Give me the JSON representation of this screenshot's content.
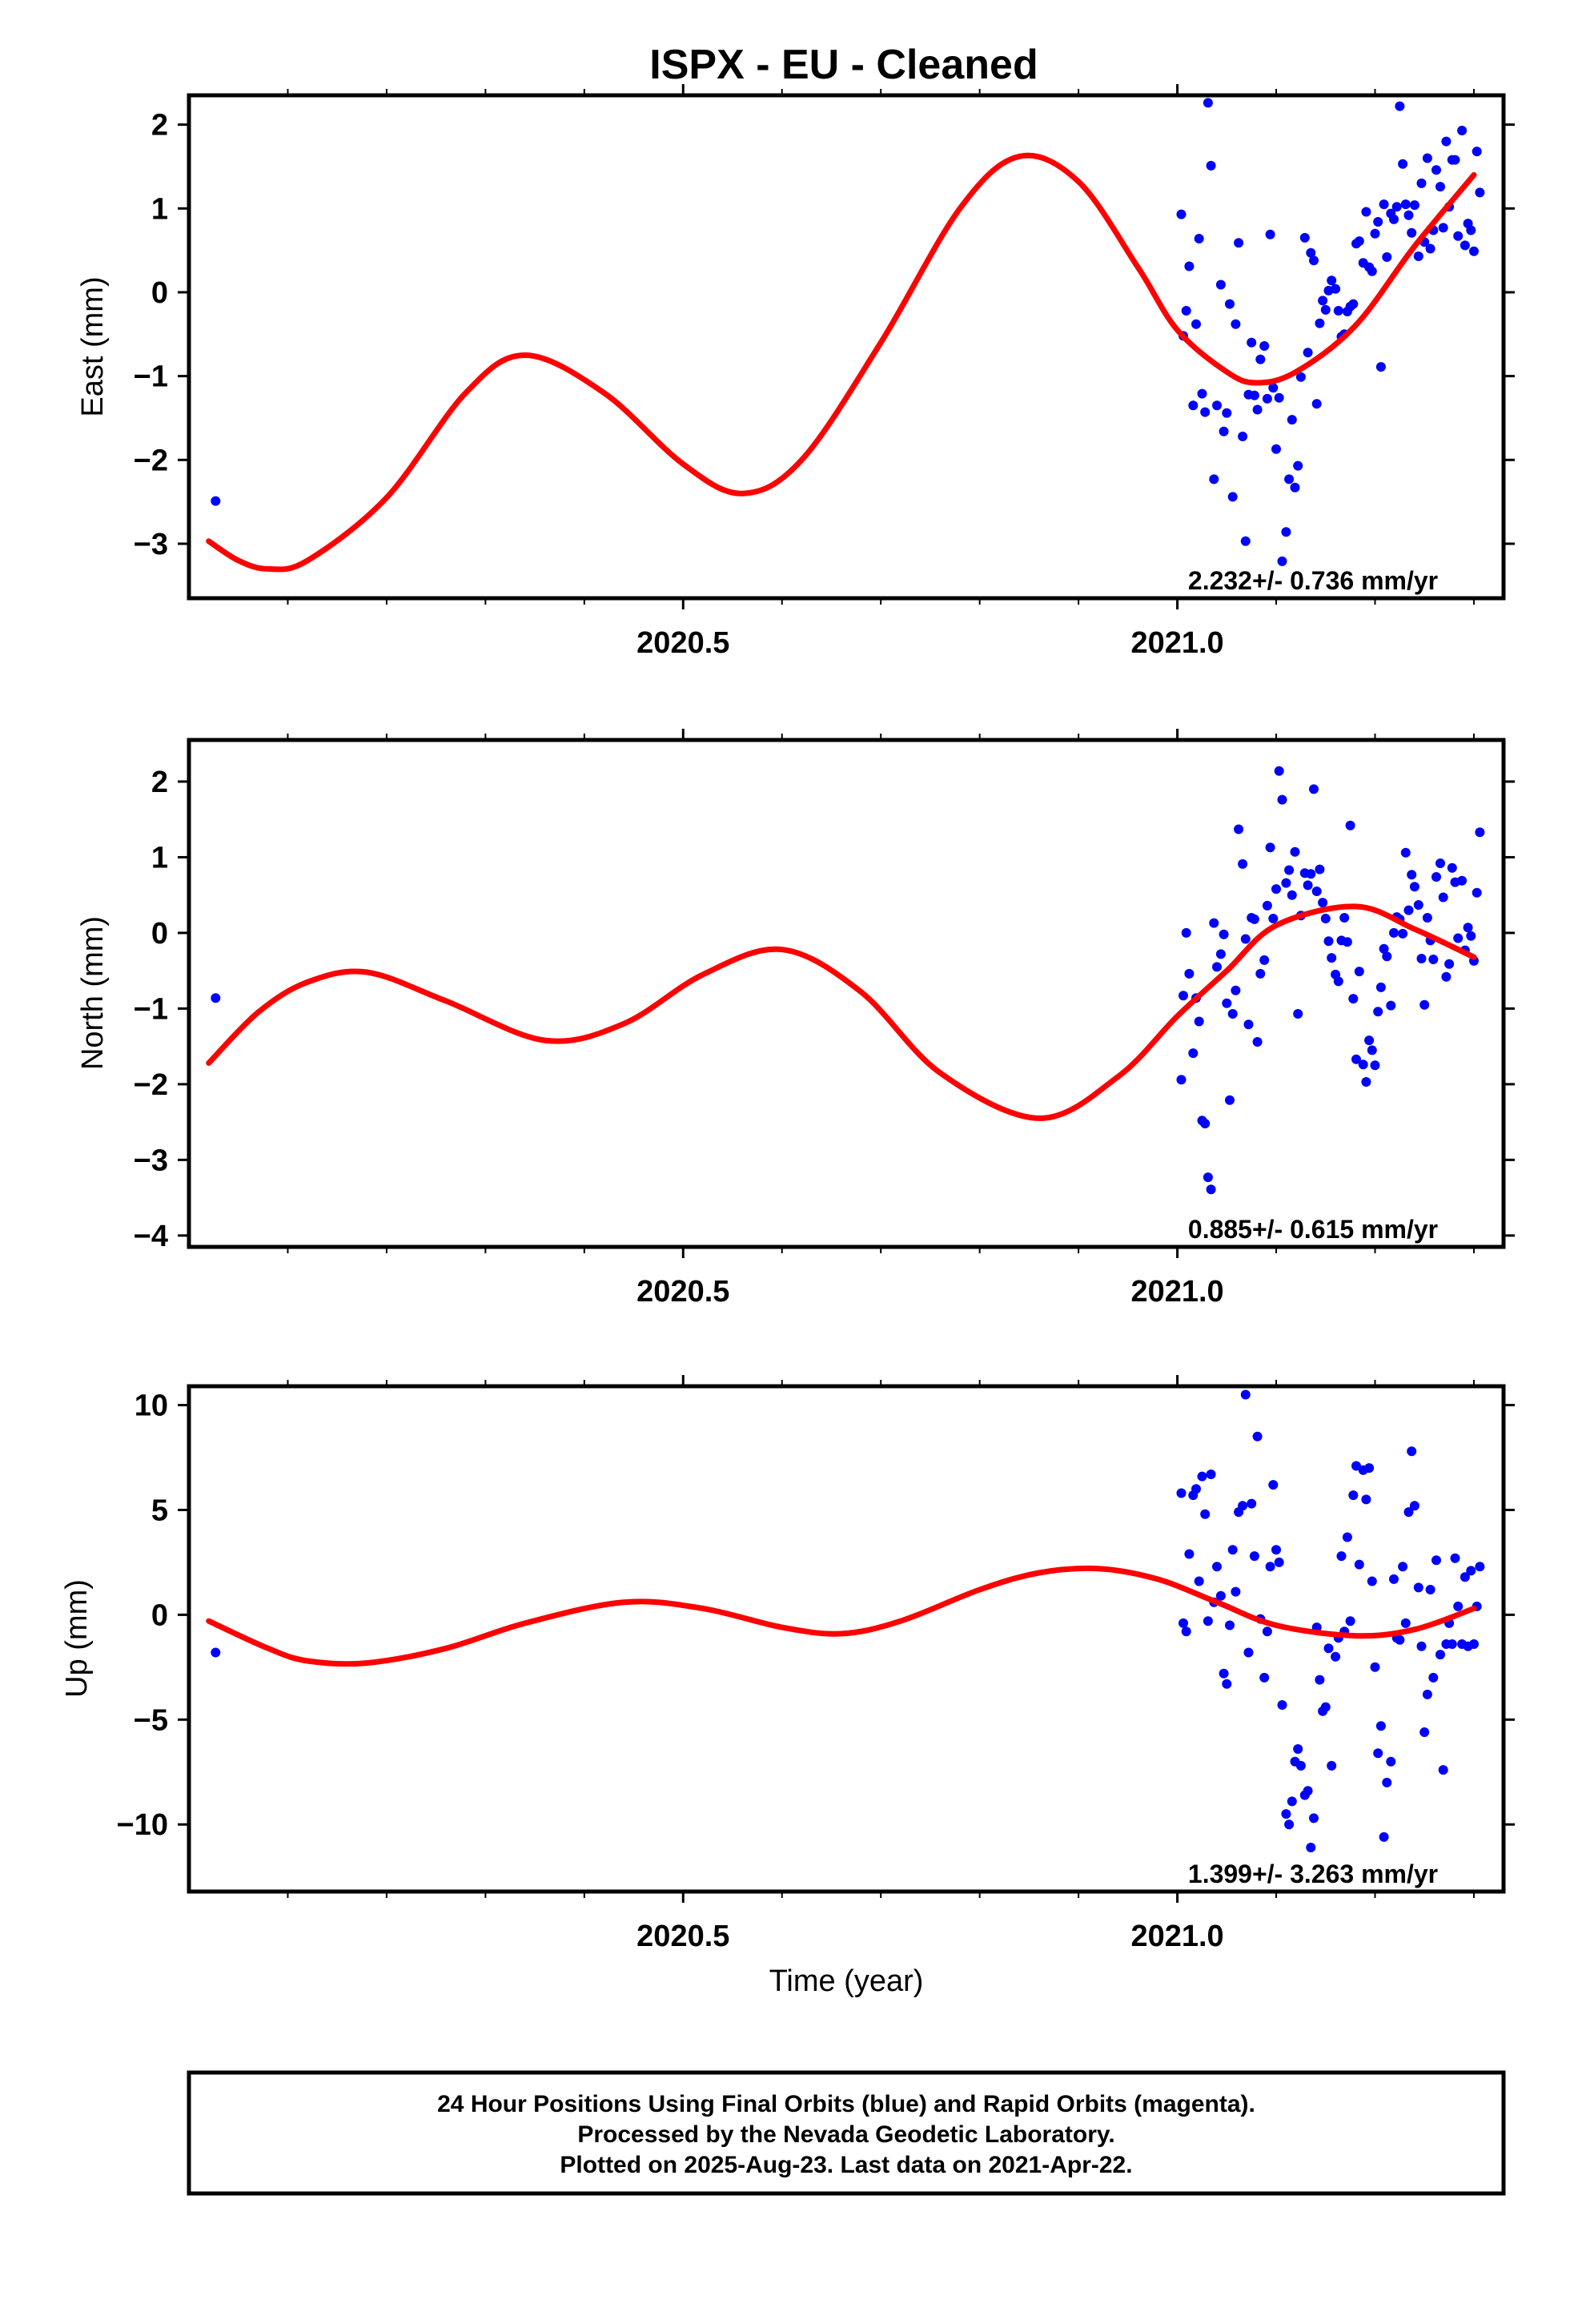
{
  "footer": {
    "lines": [
      "24 Hour Positions Using Final Orbits (blue) and Rapid Orbits (magenta).",
      "Processed by the Nevada Geodetic Laboratory.",
      "Plotted on 2025-Aug-23. Last data on 2021-Apr-22."
    ]
  },
  "colors": {
    "points": "#0000ff",
    "model": "#ff0000",
    "frame": "#000000"
  },
  "chart_data": [
    {
      "type": "scatter",
      "title": "ISPX  - EU - Cleaned",
      "ylabel": "East (mm)",
      "xlabel": "",
      "xlim": [
        2020.0,
        2021.33
      ],
      "ylim": [
        -3.65,
        2.35
      ],
      "x_ticks": [
        2020.5,
        2021.0
      ],
      "x_tick_labels": [
        "2020.5",
        "2021.0"
      ],
      "y_ticks": [
        -3,
        -2,
        -1,
        0,
        1,
        2
      ],
      "y_tick_labels": [
        "−3",
        "−2",
        "−1",
        "0",
        "1",
        "2"
      ],
      "annotation": "2.232+/- 0.736 mm/yr",
      "series": [
        {
          "kind": "points",
          "x": [
            2020.027,
            2021.004,
            2021.006,
            2021.009,
            2021.012,
            2021.016,
            2021.019,
            2021.022,
            2021.025,
            2021.028,
            2021.031,
            2021.034,
            2021.037,
            2021.04,
            2021.044,
            2021.047,
            2021.05,
            2021.053,
            2021.056,
            2021.059,
            2021.062,
            2021.066,
            2021.069,
            2021.072,
            2021.075,
            2021.078,
            2021.081,
            2021.084,
            2021.088,
            2021.091,
            2021.094,
            2021.097,
            2021.1,
            2021.103,
            2021.106,
            2021.11,
            2021.113,
            2021.116,
            2021.119,
            2021.122,
            2021.125,
            2021.129,
            2021.132,
            2021.135,
            2021.138,
            2021.141,
            2021.144,
            2021.147,
            2021.15,
            2021.153,
            2021.156,
            2021.16,
            2021.163,
            2021.166,
            2021.169,
            2021.172,
            2021.175,
            2021.178,
            2021.181,
            2021.184,
            2021.188,
            2021.191,
            2021.194,
            2021.197,
            2021.2,
            2021.203,
            2021.206,
            2021.209,
            2021.212,
            2021.216,
            2021.219,
            2021.222,
            2021.225,
            2021.228,
            2021.231,
            2021.234,
            2021.237,
            2021.24,
            2021.244,
            2021.247,
            2021.25,
            2021.253,
            2021.256,
            2021.259,
            2021.262,
            2021.266,
            2021.269,
            2021.272,
            2021.275,
            2021.278,
            2021.281,
            2021.284,
            2021.288,
            2021.291,
            2021.294,
            2021.297,
            2021.3,
            2021.303,
            2021.306
          ],
          "y": [
            -2.49,
            0.93,
            -0.52,
            -0.22,
            0.31,
            -1.35,
            -0.38,
            0.64,
            -1.21,
            -1.43,
            2.26,
            1.51,
            -2.23,
            -1.35,
            0.09,
            -1.66,
            -1.44,
            -0.14,
            -2.44,
            -0.38,
            0.59,
            -1.72,
            -2.97,
            -1.22,
            -0.6,
            -1.23,
            -1.4,
            -0.8,
            -0.64,
            -1.27,
            0.69,
            -1.14,
            -1.87,
            -1.26,
            -3.21,
            -2.86,
            -2.23,
            -1.52,
            -2.33,
            -2.07,
            -1.01,
            0.65,
            -0.72,
            0.47,
            0.38,
            -1.33,
            -0.37,
            -0.1,
            -0.21,
            0.02,
            0.14,
            0.04,
            -0.22,
            -0.53,
            -0.5,
            -0.23,
            -0.17,
            -0.14,
            0.58,
            0.61,
            0.35,
            0.96,
            0.3,
            0.25,
            0.7,
            0.84,
            -0.89,
            1.05,
            0.42,
            0.94,
            0.87,
            1.02,
            2.22,
            1.53,
            1.05,
            0.92,
            0.71,
            1.04,
            0.43,
            1.3,
            0.6,
            1.6,
            0.52,
            0.74,
            1.46,
            1.26,
            0.77,
            1.8,
            1.02,
            1.58,
            1.58,
            0.67,
            1.93,
            0.56,
            0.82,
            0.74,
            0.49,
            1.68,
            1.19
          ]
        },
        {
          "kind": "model",
          "x": [
            2020.02,
            2020.05,
            2020.08,
            2020.12,
            2020.2,
            2020.28,
            2020.34,
            2020.42,
            2020.5,
            2020.56,
            2020.62,
            2020.7,
            2020.78,
            2020.84,
            2020.9,
            2020.96,
            2021.0,
            2021.05,
            2021.08,
            2021.12,
            2021.18,
            2021.24,
            2021.3
          ],
          "y": [
            -2.97,
            -3.2,
            -3.3,
            -3.2,
            -2.45,
            -1.2,
            -0.75,
            -1.2,
            -2.05,
            -2.4,
            -2.0,
            -0.6,
            1.0,
            1.62,
            1.32,
            0.3,
            -0.45,
            -0.95,
            -1.08,
            -0.95,
            -0.4,
            0.55,
            1.4
          ]
        }
      ]
    },
    {
      "type": "scatter",
      "title": "",
      "ylabel": "North (mm)",
      "xlabel": "",
      "xlim": [
        2020.0,
        2021.33
      ],
      "ylim": [
        -4.15,
        2.55
      ],
      "x_ticks": [
        2020.5,
        2021.0
      ],
      "x_tick_labels": [
        "2020.5",
        "2021.0"
      ],
      "y_ticks": [
        -4,
        -3,
        -2,
        -1,
        0,
        1,
        2
      ],
      "y_tick_labels": [
        "−4",
        "−3",
        "−2",
        "−1",
        "0",
        "1",
        "2"
      ],
      "annotation": "0.885+/- 0.615 mm/yr",
      "series": [
        {
          "kind": "points",
          "x": [
            2020.027,
            2021.004,
            2021.006,
            2021.009,
            2021.012,
            2021.016,
            2021.019,
            2021.022,
            2021.025,
            2021.028,
            2021.031,
            2021.034,
            2021.037,
            2021.04,
            2021.044,
            2021.047,
            2021.05,
            2021.053,
            2021.056,
            2021.059,
            2021.062,
            2021.066,
            2021.069,
            2021.072,
            2021.075,
            2021.078,
            2021.081,
            2021.084,
            2021.088,
            2021.091,
            2021.094,
            2021.097,
            2021.1,
            2021.103,
            2021.106,
            2021.11,
            2021.113,
            2021.116,
            2021.119,
            2021.122,
            2021.125,
            2021.129,
            2021.132,
            2021.135,
            2021.138,
            2021.141,
            2021.144,
            2021.147,
            2021.15,
            2021.153,
            2021.156,
            2021.16,
            2021.163,
            2021.166,
            2021.169,
            2021.172,
            2021.175,
            2021.178,
            2021.181,
            2021.184,
            2021.188,
            2021.191,
            2021.194,
            2021.197,
            2021.2,
            2021.203,
            2021.206,
            2021.209,
            2021.212,
            2021.216,
            2021.219,
            2021.222,
            2021.225,
            2021.228,
            2021.231,
            2021.234,
            2021.237,
            2021.24,
            2021.244,
            2021.247,
            2021.25,
            2021.253,
            2021.256,
            2021.259,
            2021.262,
            2021.266,
            2021.269,
            2021.272,
            2021.275,
            2021.278,
            2021.281,
            2021.284,
            2021.288,
            2021.291,
            2021.294,
            2021.297,
            2021.3,
            2021.303,
            2021.306
          ],
          "y": [
            -0.86,
            -1.94,
            -0.83,
            0.0,
            -0.54,
            -1.59,
            -0.86,
            -1.17,
            -2.48,
            -2.52,
            -3.23,
            -3.39,
            0.13,
            -0.45,
            -0.28,
            -0.02,
            -0.93,
            -2.21,
            -1.07,
            -0.76,
            1.37,
            0.91,
            -0.08,
            -1.21,
            0.2,
            0.18,
            -1.44,
            -0.54,
            -0.36,
            0.36,
            1.13,
            0.19,
            0.58,
            2.14,
            1.76,
            0.66,
            0.83,
            0.5,
            1.07,
            -1.07,
            0.23,
            0.79,
            0.63,
            0.78,
            1.9,
            0.55,
            0.84,
            0.4,
            0.19,
            -0.11,
            -0.33,
            -0.55,
            -0.64,
            -0.1,
            0.2,
            -0.12,
            1.42,
            -0.87,
            -1.67,
            -0.51,
            -1.74,
            -1.97,
            -1.42,
            -1.55,
            -1.75,
            -1.04,
            -0.72,
            -0.21,
            -0.31,
            -0.96,
            0.0,
            0.21,
            0.18,
            -0.01,
            1.06,
            0.3,
            0.77,
            0.61,
            0.37,
            -0.34,
            -0.95,
            0.2,
            -0.1,
            -0.35,
            0.74,
            0.92,
            0.47,
            -0.58,
            -0.41,
            0.86,
            0.67,
            -0.07,
            0.69,
            -0.23,
            0.07,
            -0.04,
            -0.37,
            0.53,
            1.33
          ]
        },
        {
          "kind": "model",
          "x": [
            2020.02,
            2020.07,
            2020.12,
            2020.18,
            2020.26,
            2020.36,
            2020.44,
            2020.52,
            2020.6,
            2020.68,
            2020.76,
            2020.86,
            2020.94,
            2021.0,
            2021.05,
            2021.1,
            2021.18,
            2021.24,
            2021.3
          ],
          "y": [
            -1.72,
            -1.05,
            -0.65,
            -0.52,
            -0.9,
            -1.42,
            -1.2,
            -0.55,
            -0.22,
            -0.78,
            -1.85,
            -2.45,
            -1.9,
            -1.1,
            -0.5,
            0.1,
            0.35,
            0.05,
            -0.32
          ]
        }
      ]
    },
    {
      "type": "scatter",
      "title": "",
      "ylabel": "Up (mm)",
      "xlabel": "Time (year)",
      "xlim": [
        2020.0,
        2021.33
      ],
      "ylim": [
        -13.2,
        10.9
      ],
      "x_ticks": [
        2020.5,
        2021.0
      ],
      "x_tick_labels": [
        "2020.5",
        "2021.0"
      ],
      "y_ticks": [
        -10,
        -5,
        0,
        5,
        10
      ],
      "y_tick_labels": [
        "−10",
        "−5",
        "0",
        "5",
        "10"
      ],
      "annotation": "1.399+/- 3.263 mm/yr",
      "series": [
        {
          "kind": "points",
          "x": [
            2020.027,
            2021.004,
            2021.006,
            2021.009,
            2021.012,
            2021.016,
            2021.019,
            2021.022,
            2021.025,
            2021.028,
            2021.031,
            2021.034,
            2021.037,
            2021.04,
            2021.044,
            2021.047,
            2021.05,
            2021.053,
            2021.056,
            2021.059,
            2021.062,
            2021.066,
            2021.069,
            2021.072,
            2021.075,
            2021.078,
            2021.081,
            2021.084,
            2021.088,
            2021.091,
            2021.094,
            2021.097,
            2021.1,
            2021.103,
            2021.106,
            2021.11,
            2021.113,
            2021.116,
            2021.119,
            2021.122,
            2021.125,
            2021.129,
            2021.132,
            2021.135,
            2021.138,
            2021.141,
            2021.144,
            2021.147,
            2021.15,
            2021.153,
            2021.156,
            2021.16,
            2021.163,
            2021.166,
            2021.169,
            2021.172,
            2021.175,
            2021.178,
            2021.181,
            2021.184,
            2021.188,
            2021.191,
            2021.194,
            2021.197,
            2021.2,
            2021.203,
            2021.206,
            2021.209,
            2021.212,
            2021.216,
            2021.219,
            2021.222,
            2021.225,
            2021.228,
            2021.231,
            2021.234,
            2021.237,
            2021.24,
            2021.244,
            2021.247,
            2021.25,
            2021.253,
            2021.256,
            2021.259,
            2021.262,
            2021.266,
            2021.269,
            2021.272,
            2021.275,
            2021.278,
            2021.281,
            2021.284,
            2021.288,
            2021.291,
            2021.294,
            2021.297,
            2021.3,
            2021.303,
            2021.306
          ],
          "y": [
            -1.8,
            5.8,
            -0.4,
            -0.8,
            2.9,
            5.7,
            6.0,
            1.6,
            6.6,
            4.8,
            -0.3,
            6.7,
            0.6,
            2.3,
            0.9,
            -2.8,
            -3.3,
            -0.5,
            3.1,
            1.1,
            4.9,
            5.2,
            10.5,
            -1.8,
            5.3,
            2.8,
            8.5,
            -0.2,
            -3.0,
            -0.8,
            2.3,
            6.2,
            3.1,
            2.5,
            -4.3,
            -9.5,
            -10.0,
            -8.9,
            -7.0,
            -6.4,
            -7.2,
            -8.6,
            -8.4,
            -11.1,
            -9.7,
            -0.6,
            -3.1,
            -4.6,
            -4.4,
            -1.6,
            -7.2,
            -2.0,
            -1.1,
            2.8,
            -0.8,
            3.7,
            -0.3,
            5.7,
            7.1,
            2.4,
            6.9,
            5.5,
            7.0,
            1.6,
            -2.5,
            -6.6,
            -5.3,
            -10.6,
            -8.0,
            -7.0,
            1.7,
            -1.1,
            -1.2,
            2.3,
            -0.4,
            4.9,
            7.8,
            5.2,
            1.3,
            -1.5,
            -5.6,
            -3.8,
            1.2,
            -3.0,
            2.6,
            -1.9,
            -7.4,
            -1.4,
            -0.4,
            -1.4,
            2.7,
            0.4,
            -1.4,
            1.8,
            -1.5,
            2.1,
            -1.4,
            0.4,
            2.3
          ]
        },
        {
          "kind": "model",
          "x": [
            2020.02,
            2020.08,
            2020.12,
            2020.18,
            2020.26,
            2020.34,
            2020.44,
            2020.52,
            2020.6,
            2020.66,
            2020.72,
            2020.8,
            2020.86,
            2020.92,
            2020.98,
            2021.04,
            2021.1,
            2021.18,
            2021.24,
            2021.3
          ],
          "y": [
            -0.3,
            -1.6,
            -2.2,
            -2.3,
            -1.6,
            -0.4,
            0.6,
            0.3,
            -0.6,
            -0.9,
            -0.3,
            1.2,
            2.0,
            2.2,
            1.7,
            0.6,
            -0.5,
            -1.0,
            -0.7,
            0.3
          ]
        }
      ]
    }
  ]
}
